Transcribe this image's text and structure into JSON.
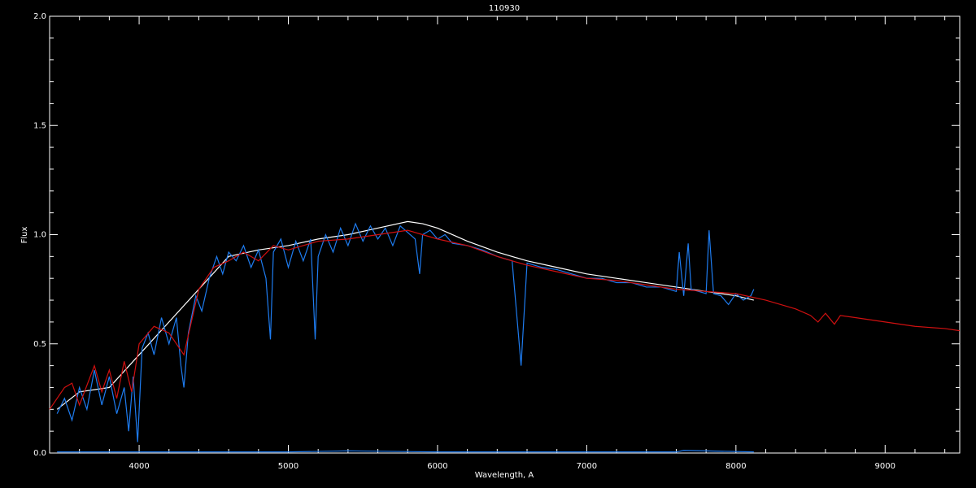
{
  "chart_data": {
    "type": "line",
    "title": "110930",
    "x_label": "Wavelength, A",
    "y_label": "Flux",
    "xlim": [
      3400,
      9500
    ],
    "ylim": [
      0,
      2
    ],
    "xticks": [
      4000,
      5000,
      6000,
      7000,
      8000,
      9000
    ],
    "yticks": [
      {
        "value": 0,
        "label": "0.0"
      },
      {
        "value": 0.5,
        "label": "0.5"
      },
      {
        "value": 1,
        "label": "1.0"
      },
      {
        "value": 1.5,
        "label": "1.5"
      },
      {
        "value": 2,
        "label": "2.0"
      }
    ],
    "xminorticks": [
      3400,
      3600,
      3800,
      4200,
      4400,
      4600,
      4800,
      5200,
      5400,
      5600,
      5800,
      6200,
      6400,
      6600,
      6800,
      7200,
      7400,
      7600,
      7800,
      8200,
      8400,
      8600,
      8800,
      9200,
      9400
    ],
    "yminorticks": [
      0.1,
      0.2,
      0.3,
      0.4,
      0.6,
      0.7,
      0.8,
      0.9,
      1.1,
      1.2,
      1.3,
      1.4,
      1.6,
      1.7,
      1.8,
      1.9
    ],
    "series": [
      {
        "color": "#ffffff",
        "x": [
          3450,
          3600,
          3800,
          4000,
          4200,
          4400,
          4600,
          4800,
          5000,
          5200,
          5400,
          5600,
          5800,
          5900,
          6000,
          6200,
          6400,
          6600,
          6800,
          7000,
          7200,
          7400,
          7600,
          7800,
          8000,
          8120
        ],
        "values": [
          0.2,
          0.28,
          0.3,
          0.45,
          0.6,
          0.75,
          0.9,
          0.93,
          0.95,
          0.98,
          1.0,
          1.03,
          1.06,
          1.05,
          1.03,
          0.97,
          0.92,
          0.88,
          0.85,
          0.82,
          0.8,
          0.78,
          0.76,
          0.74,
          0.72,
          0.7
        ]
      },
      {
        "color": "#1e7cf0",
        "x": [
          3450,
          3500,
          3550,
          3600,
          3650,
          3700,
          3750,
          3800,
          3850,
          3900,
          3930,
          3960,
          3990,
          4020,
          4060,
          4100,
          4150,
          4200,
          4250,
          4280,
          4300,
          4330,
          4380,
          4420,
          4470,
          4520,
          4560,
          4600,
          4650,
          4700,
          4750,
          4800,
          4850,
          4880,
          4900,
          4950,
          5000,
          5050,
          5100,
          5150,
          5180,
          5200,
          5250,
          5300,
          5350,
          5400,
          5450,
          5500,
          5550,
          5600,
          5650,
          5700,
          5750,
          5800,
          5850,
          5880,
          5900,
          5950,
          6000,
          6050,
          6100,
          6200,
          6300,
          6400,
          6500,
          6560,
          6600,
          6700,
          6800,
          6900,
          7000,
          7100,
          7200,
          7300,
          7400,
          7500,
          7600,
          7620,
          7650,
          7680,
          7700,
          7750,
          7800,
          7820,
          7850,
          7900,
          7950,
          8000,
          8050,
          8100,
          8120
        ],
        "values": [
          0.18,
          0.25,
          0.15,
          0.3,
          0.2,
          0.38,
          0.22,
          0.35,
          0.18,
          0.3,
          0.1,
          0.35,
          0.05,
          0.48,
          0.55,
          0.45,
          0.62,
          0.5,
          0.62,
          0.4,
          0.3,
          0.55,
          0.72,
          0.65,
          0.8,
          0.9,
          0.82,
          0.92,
          0.88,
          0.95,
          0.85,
          0.93,
          0.8,
          0.52,
          0.92,
          0.98,
          0.85,
          0.97,
          0.88,
          0.98,
          0.52,
          0.9,
          1.0,
          0.92,
          1.03,
          0.95,
          1.05,
          0.97,
          1.04,
          0.98,
          1.03,
          0.95,
          1.04,
          1.01,
          0.98,
          0.82,
          1.0,
          1.02,
          0.98,
          1.0,
          0.96,
          0.95,
          0.93,
          0.9,
          0.88,
          0.4,
          0.87,
          0.85,
          0.84,
          0.82,
          0.8,
          0.8,
          0.78,
          0.78,
          0.76,
          0.76,
          0.74,
          0.92,
          0.72,
          0.96,
          0.75,
          0.74,
          0.73,
          1.02,
          0.73,
          0.72,
          0.68,
          0.73,
          0.7,
          0.72,
          0.75
        ]
      },
      {
        "color": "#d01010",
        "x": [
          3400,
          3500,
          3550,
          3600,
          3700,
          3750,
          3800,
          3850,
          3900,
          3950,
          4000,
          4100,
          4200,
          4300,
          4400,
          4500,
          4600,
          4700,
          4800,
          4900,
          5000,
          5200,
          5400,
          5600,
          5800,
          6000,
          6200,
          6400,
          6600,
          6800,
          7000,
          7200,
          7400,
          7600,
          7800,
          8000,
          8200,
          8400,
          8500,
          8550,
          8600,
          8660,
          8700,
          8800,
          9000,
          9200,
          9400,
          9500
        ],
        "values": [
          0.2,
          0.3,
          0.32,
          0.22,
          0.4,
          0.28,
          0.38,
          0.25,
          0.42,
          0.28,
          0.5,
          0.58,
          0.55,
          0.45,
          0.75,
          0.85,
          0.88,
          0.92,
          0.88,
          0.95,
          0.93,
          0.97,
          0.98,
          1.0,
          1.02,
          0.98,
          0.95,
          0.9,
          0.86,
          0.83,
          0.8,
          0.79,
          0.77,
          0.75,
          0.74,
          0.73,
          0.7,
          0.66,
          0.63,
          0.6,
          0.64,
          0.59,
          0.63,
          0.62,
          0.6,
          0.58,
          0.57,
          0.56
        ]
      },
      {
        "color": "#1e7cf0",
        "x": [
          3450,
          4000,
          5000,
          5400,
          6000,
          7000,
          7600,
          7650,
          8120
        ],
        "values": [
          0.005,
          0.005,
          0.005,
          0.01,
          0.005,
          0.005,
          0.005,
          0.012,
          0.005
        ]
      }
    ]
  }
}
